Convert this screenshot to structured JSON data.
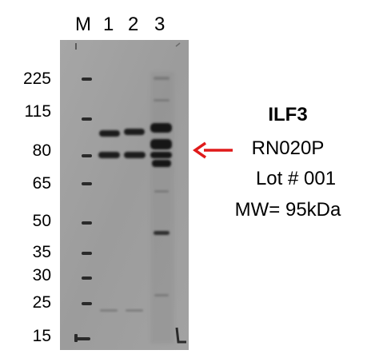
{
  "lanes": {
    "marker": "M",
    "lane1": "1",
    "lane2": "2",
    "lane3": "3"
  },
  "mw_markers": [
    "225",
    "115",
    "80",
    "65",
    "50",
    "35",
    "30",
    "25",
    "15"
  ],
  "info": {
    "protein": "ILF3",
    "catalog": "RN020P",
    "lot": "Lot # 001",
    "mw": "MW= 95kDa"
  },
  "colors": {
    "membrane": "#9e9e9e",
    "band": "#1c1c1c",
    "arrow": "#e01a1a"
  }
}
